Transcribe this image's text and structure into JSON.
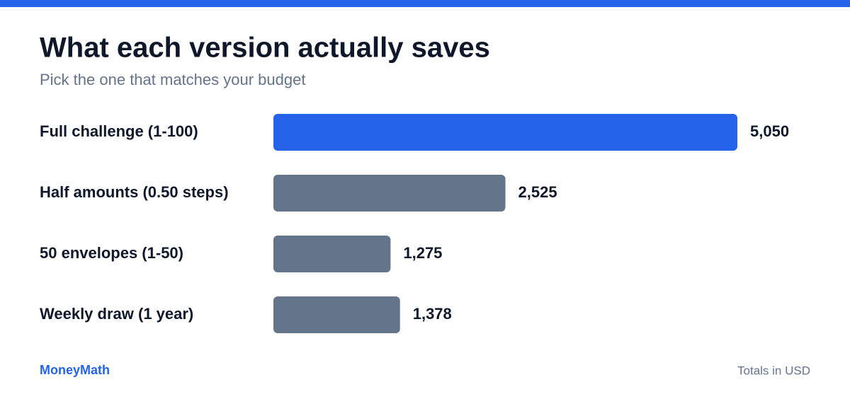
{
  "chart_data": {
    "type": "bar",
    "orientation": "horizontal",
    "title": "What each version actually saves",
    "subtitle": "Pick the one that matches your budget",
    "categories": [
      "Full challenge (1-100)",
      "Half amounts (0.50 steps)",
      "50 envelopes (1-50)",
      "Weekly draw (1 year)"
    ],
    "values": [
      5050,
      2525,
      1275,
      1378
    ],
    "value_labels": [
      "5,050",
      "2,525",
      "1,275",
      "1,378"
    ],
    "colors": [
      "#2563eb",
      "#64748b",
      "#64748b",
      "#64748b"
    ],
    "brand": "MoneyMath",
    "note": "Totals in USD"
  }
}
